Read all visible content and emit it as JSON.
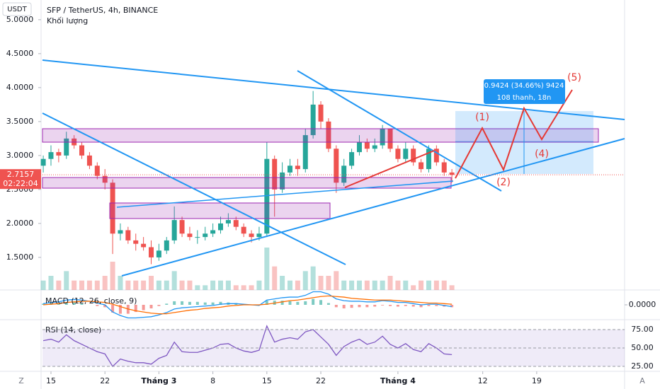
{
  "chart_data": {
    "type": "candlestick",
    "title": "SFP / TetherUS, 4h, BINANCE",
    "currency": "USDT",
    "volume_label": "Khối lượng",
    "up_color": "#26a69a",
    "down_color": "#ef5350",
    "x": [
      0,
      1,
      2,
      3,
      4,
      5,
      6,
      7,
      8,
      9,
      10,
      11,
      12,
      13,
      14,
      15,
      16,
      17,
      18,
      19,
      20,
      21,
      22,
      23,
      24,
      25,
      26,
      27,
      28,
      29,
      30,
      31,
      32,
      33,
      34,
      35,
      36,
      37,
      38,
      39,
      40,
      41,
      42,
      43,
      44,
      45,
      46,
      47,
      48,
      49,
      50,
      51,
      52,
      53
    ],
    "open": [
      2.85,
      2.95,
      3.05,
      3.0,
      3.25,
      3.15,
      3.0,
      2.85,
      2.7,
      2.6,
      1.85,
      1.9,
      1.75,
      1.7,
      1.65,
      1.5,
      1.6,
      1.75,
      2.05,
      1.85,
      1.8,
      1.8,
      1.85,
      1.9,
      2.0,
      2.05,
      1.95,
      1.85,
      1.8,
      1.85,
      2.95,
      2.5,
      2.75,
      2.85,
      2.8,
      3.3,
      3.75,
      3.5,
      3.1,
      2.6,
      2.85,
      3.05,
      3.2,
      3.1,
      3.15,
      3.4,
      3.1,
      2.95,
      3.1,
      2.9,
      2.8,
      3.1,
      2.9,
      2.75
    ],
    "high": [
      3.0,
      3.15,
      3.1,
      3.35,
      3.3,
      3.2,
      3.05,
      2.9,
      2.8,
      2.65,
      2.0,
      1.95,
      1.85,
      1.8,
      1.75,
      1.7,
      1.8,
      2.25,
      2.1,
      1.95,
      1.9,
      1.95,
      2.0,
      2.1,
      2.15,
      2.1,
      2.0,
      1.9,
      1.95,
      3.2,
      3.0,
      2.9,
      2.95,
      2.95,
      3.4,
      3.95,
      3.8,
      3.55,
      3.15,
      2.95,
      3.1,
      3.3,
      3.25,
      3.25,
      3.45,
      3.4,
      3.15,
      3.2,
      3.15,
      2.95,
      3.15,
      3.15,
      2.95,
      2.8
    ],
    "low": [
      2.75,
      2.85,
      2.9,
      2.95,
      3.1,
      2.95,
      2.8,
      2.65,
      2.5,
      1.55,
      1.75,
      1.7,
      1.6,
      1.6,
      1.4,
      1.45,
      1.55,
      1.7,
      1.8,
      1.75,
      1.7,
      1.75,
      1.8,
      1.85,
      1.95,
      1.9,
      1.8,
      1.72,
      1.75,
      1.8,
      2.1,
      2.45,
      2.7,
      2.7,
      2.75,
      3.25,
      3.4,
      3.05,
      2.45,
      2.55,
      2.8,
      3.0,
      3.05,
      3.05,
      3.1,
      3.05,
      2.9,
      2.9,
      2.85,
      2.75,
      2.75,
      2.85,
      2.7,
      2.6
    ],
    "close": [
      2.95,
      3.05,
      3.0,
      3.25,
      3.15,
      3.0,
      2.85,
      2.7,
      2.6,
      1.85,
      1.9,
      1.75,
      1.7,
      1.65,
      1.5,
      1.6,
      1.75,
      2.05,
      1.85,
      1.8,
      1.8,
      1.85,
      1.9,
      2.0,
      2.05,
      1.95,
      1.85,
      1.8,
      1.85,
      2.95,
      2.5,
      2.75,
      2.85,
      2.8,
      3.3,
      3.75,
      3.5,
      3.1,
      2.6,
      2.85,
      3.05,
      3.2,
      3.1,
      3.15,
      3.4,
      3.1,
      2.95,
      3.1,
      2.9,
      2.8,
      3.1,
      2.9,
      2.75,
      2.7157
    ],
    "volume": [
      2,
      3,
      2,
      4,
      2,
      2,
      2,
      2,
      3,
      6,
      3,
      2,
      2,
      2,
      3,
      2,
      2,
      4,
      2,
      2,
      1,
      1,
      2,
      2,
      2,
      1,
      1,
      1,
      2,
      9,
      5,
      3,
      2,
      2,
      4,
      5,
      3,
      3,
      4,
      2,
      2,
      2,
      2,
      2,
      2,
      3,
      2,
      2,
      1,
      2,
      2,
      2,
      2,
      1
    ],
    "xlim": [
      -0.1,
      75.4
    ],
    "xticks": [
      {
        "value": 1,
        "label": "15"
      },
      {
        "value": 8,
        "label": "22"
      },
      {
        "value": 15,
        "label": "Tháng 3"
      },
      {
        "value": 22,
        "label": "8"
      },
      {
        "value": 29,
        "label": "15"
      },
      {
        "value": 36,
        "label": "22"
      },
      {
        "value": 46,
        "label": "Tháng 4"
      },
      {
        "value": 57,
        "label": "12"
      },
      {
        "value": 64,
        "label": "19"
      }
    ],
    "ylim": [
      1.02,
      5.29
    ],
    "yticks": [
      {
        "value": 5,
        "label": "5.0000"
      },
      {
        "value": 4.5,
        "label": "4.5000"
      },
      {
        "value": 4,
        "label": "4.0000"
      },
      {
        "value": 3.5,
        "label": "3.5000"
      },
      {
        "value": 3,
        "label": "3.0000"
      },
      {
        "value": 2.5,
        "label": "2.5000"
      },
      {
        "value": 2,
        "label": "2.0000"
      },
      {
        "value": 1.5,
        "label": "1.5000"
      }
    ],
    "last_price": 2.7157,
    "countdown": "02:22:04",
    "macd": {
      "title": "MACD (12, 26, close, 9)",
      "macd_color": "#2196f3",
      "signal_color": "#ff6d00",
      "macd": [
        0.02,
        0.04,
        0.05,
        0.08,
        0.09,
        0.08,
        0.06,
        0.03,
        0.0,
        -0.12,
        -0.18,
        -0.22,
        -0.22,
        -0.21,
        -0.2,
        -0.17,
        -0.13,
        -0.07,
        -0.05,
        -0.04,
        -0.03,
        -0.02,
        -0.01,
        0.01,
        0.02,
        0.02,
        0.01,
        0.0,
        -0.01,
        0.08,
        0.1,
        0.12,
        0.13,
        0.13,
        0.16,
        0.22,
        0.22,
        0.18,
        0.1,
        0.07,
        0.06,
        0.06,
        0.05,
        0.05,
        0.07,
        0.06,
        0.04,
        0.04,
        0.02,
        0.0,
        0.01,
        0.01,
        -0.01,
        -0.03
      ],
      "signal": [
        0.0,
        0.01,
        0.02,
        0.04,
        0.05,
        0.06,
        0.06,
        0.05,
        0.04,
        0.01,
        -0.03,
        -0.07,
        -0.1,
        -0.12,
        -0.14,
        -0.15,
        -0.15,
        -0.13,
        -0.11,
        -0.09,
        -0.08,
        -0.06,
        -0.05,
        -0.04,
        -0.02,
        -0.01,
        0.0,
        0.0,
        0.0,
        0.01,
        0.03,
        0.05,
        0.07,
        0.08,
        0.1,
        0.12,
        0.14,
        0.15,
        0.14,
        0.13,
        0.11,
        0.1,
        0.09,
        0.08,
        0.08,
        0.08,
        0.07,
        0.06,
        0.05,
        0.04,
        0.03,
        0.03,
        0.02,
        0.01
      ],
      "ylim": [
        -0.25,
        0.25
      ],
      "yticks": [
        {
          "value": 0,
          "label": "0.0000"
        }
      ]
    },
    "rsi": {
      "title": "RSI (14, close)",
      "color": "#7e57c2",
      "values": [
        60,
        62,
        58,
        68,
        60,
        55,
        50,
        45,
        42,
        25,
        35,
        32,
        30,
        30,
        28,
        36,
        40,
        58,
        45,
        44,
        44,
        47,
        50,
        55,
        56,
        50,
        46,
        44,
        47,
        80,
        58,
        62,
        64,
        62,
        72,
        75,
        65,
        55,
        40,
        52,
        58,
        62,
        55,
        58,
        66,
        55,
        50,
        56,
        48,
        45,
        56,
        50,
        42,
        41
      ],
      "ylim": [
        18.3,
        88.5
      ],
      "yticks": [
        {
          "value": 75,
          "label": "75.00"
        },
        {
          "value": 50,
          "label": "50.00"
        },
        {
          "value": 25,
          "label": "25.00"
        }
      ]
    }
  },
  "annotations": {
    "wave_labels": [
      "(1)",
      "(2)",
      "(4)",
      "(5)"
    ],
    "measure": [
      "0.9424 (34.66%) 9424",
      "108 thanh, 18n"
    ]
  },
  "corners": {
    "left": "Z",
    "right": "A"
  }
}
